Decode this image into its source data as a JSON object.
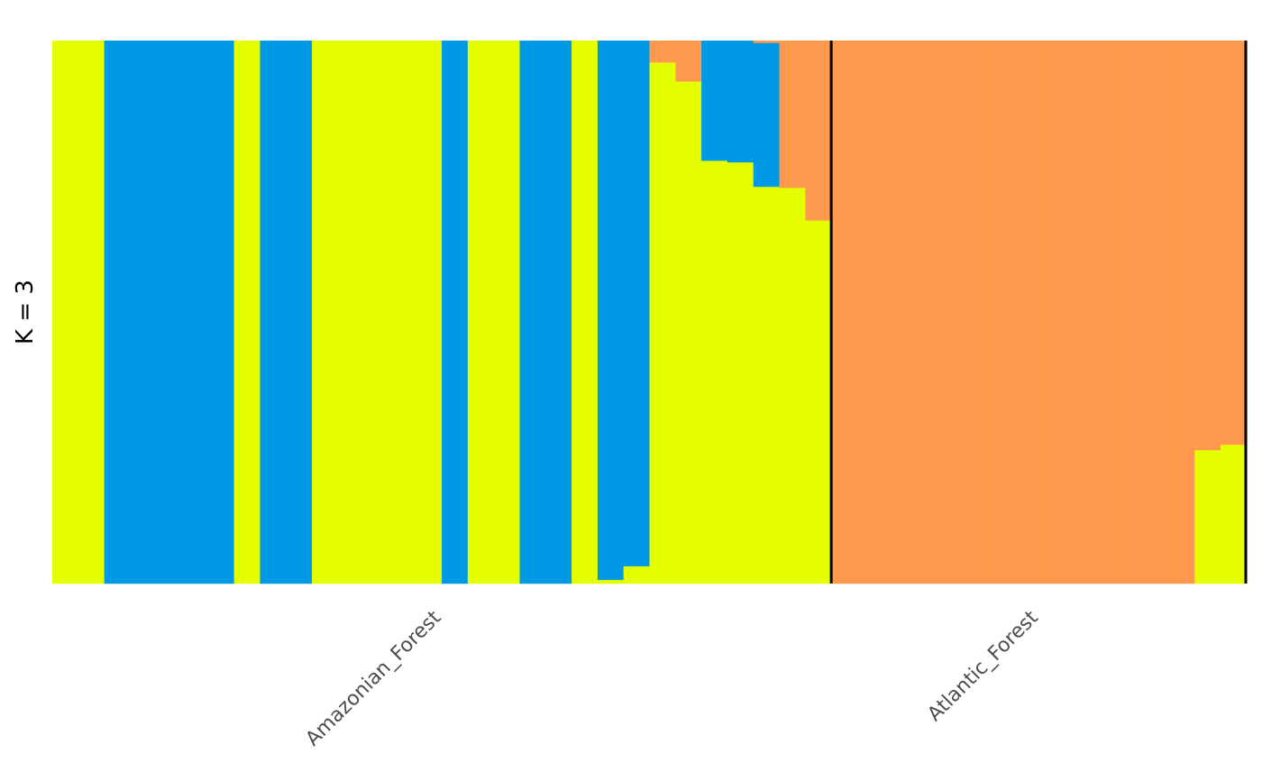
{
  "chart_data": {
    "type": "bar",
    "stacked": true,
    "title": "",
    "ylabel": "K = 3",
    "xlabel": "",
    "ylim": [
      0,
      1
    ],
    "grid": false,
    "legend": "none",
    "cluster_colors": [
      "#E5FF00",
      "#0099E5",
      "#FF994D"
    ],
    "groups": [
      {
        "label": "Amazonian_Forest",
        "individuals": [
          [
            1,
            0,
            0
          ],
          [
            1,
            0,
            0
          ],
          [
            0,
            1,
            0
          ],
          [
            0,
            1,
            0
          ],
          [
            0,
            1,
            0
          ],
          [
            0,
            1,
            0
          ],
          [
            0,
            1,
            0
          ],
          [
            1,
            0,
            0
          ],
          [
            0,
            1,
            0
          ],
          [
            0,
            1,
            0
          ],
          [
            1,
            0,
            0
          ],
          [
            1,
            0,
            0
          ],
          [
            1,
            0,
            0
          ],
          [
            1,
            0,
            0
          ],
          [
            1,
            0,
            0
          ],
          [
            0,
            1,
            0
          ],
          [
            1,
            0,
            0
          ],
          [
            1,
            0,
            0
          ],
          [
            0,
            1,
            0
          ],
          [
            0,
            1,
            0
          ],
          [
            1,
            0,
            0
          ],
          [
            0.007,
            0.993,
            0
          ],
          [
            0.032,
            0.968,
            0
          ],
          [
            0.96,
            0,
            0.04
          ],
          [
            0.925,
            0,
            0.075
          ],
          [
            0.779,
            0.221,
            0
          ],
          [
            0.776,
            0.224,
            0
          ],
          [
            0.731,
            0.265,
            0.004
          ],
          [
            0.729,
            0,
            0.271
          ],
          [
            0.669,
            0,
            0.331
          ]
        ]
      },
      {
        "label": "Atlantic_Forest",
        "individuals": [
          [
            0,
            0,
            1
          ],
          [
            0,
            0,
            1
          ],
          [
            0,
            0,
            1
          ],
          [
            0,
            0,
            1
          ],
          [
            0,
            0,
            1
          ],
          [
            0,
            0,
            1
          ],
          [
            0,
            0,
            1
          ],
          [
            0,
            0,
            1
          ],
          [
            0,
            0,
            1
          ],
          [
            0,
            0,
            1
          ],
          [
            0,
            0,
            1
          ],
          [
            0,
            0,
            1
          ],
          [
            0,
            0,
            1
          ],
          [
            0,
            0,
            1
          ],
          [
            0.246,
            0,
            0.754
          ],
          [
            0.256,
            0,
            0.744
          ]
        ]
      }
    ]
  }
}
